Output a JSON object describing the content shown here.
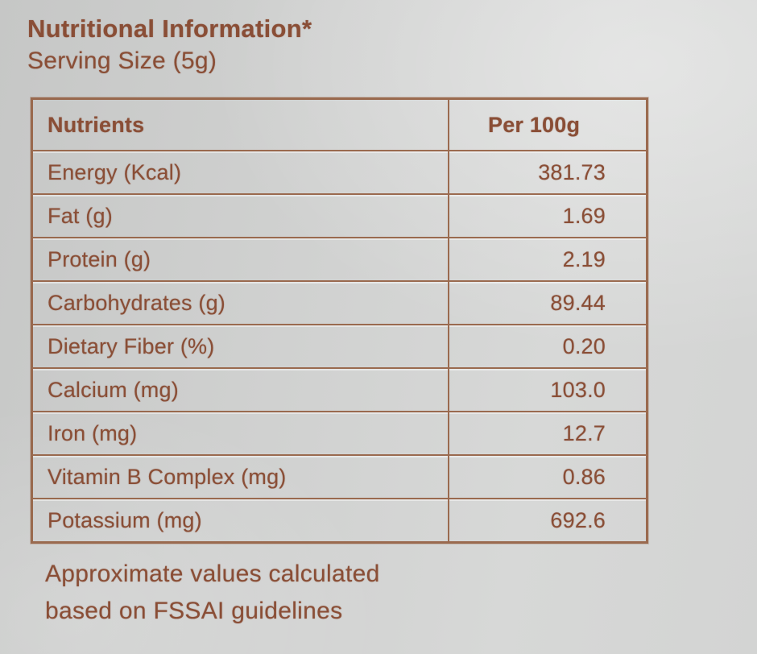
{
  "label": {
    "title": "Nutritional Information*",
    "subtitle": "Serving Size (5g)",
    "footnote_line1": "Approximate values calculated",
    "footnote_line2": "based on FSSAI guidelines"
  },
  "table": {
    "columns": [
      "Nutrients",
      "Per 100g"
    ],
    "rows": [
      {
        "nutrient": "Energy (Kcal)",
        "per_100g": "381.73"
      },
      {
        "nutrient": "Fat (g)",
        "per_100g": "1.69"
      },
      {
        "nutrient": "Protein (g)",
        "per_100g": "2.19"
      },
      {
        "nutrient": "Carbohydrates (g)",
        "per_100g": "89.44"
      },
      {
        "nutrient": "Dietary Fiber (%)",
        "per_100g": "0.20"
      },
      {
        "nutrient": "Calcium (mg)",
        "per_100g": "103.0"
      },
      {
        "nutrient": "Iron (mg)",
        "per_100g": "12.7"
      },
      {
        "nutrient": "Vitamin B Complex (mg)",
        "per_100g": "0.86"
      },
      {
        "nutrient": "Potassium (mg)",
        "per_100g": "692.6"
      }
    ]
  },
  "colors": {
    "ink": "#8a4e36",
    "ink_border": "rgba(148, 94, 64, 0.9)",
    "background": "#d0d1d0"
  }
}
